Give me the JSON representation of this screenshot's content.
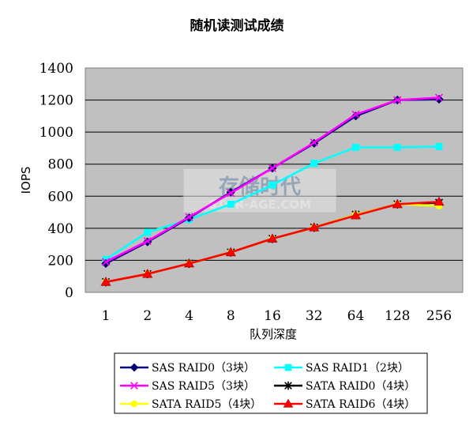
{
  "chart_data": {
    "type": "line",
    "title": "随机读测试成绩",
    "xlabel": "队列深度",
    "ylabel": "IOPS",
    "categories": [
      "1",
      "2",
      "4",
      "8",
      "16",
      "32",
      "64",
      "128",
      "256"
    ],
    "ylim": [
      0,
      1400
    ],
    "yticks": [
      "0",
      "200",
      "400",
      "600",
      "800",
      "1000",
      "1200",
      "1400"
    ],
    "grid": true,
    "legend": "bottom",
    "series": [
      {
        "name": "SAS RAID0（3块）",
        "color": "#000080",
        "marker": "diamond",
        "values": [
          180,
          315,
          465,
          625,
          775,
          930,
          1100,
          1200,
          1205
        ]
      },
      {
        "name": "SAS RAID1（2块）",
        "color": "#00FFFF",
        "marker": "square",
        "values": [
          205,
          375,
          455,
          550,
          670,
          805,
          905,
          905,
          910
        ]
      },
      {
        "name": "SAS RAID5（3块）",
        "color": "#FF00FF",
        "marker": "x",
        "values": [
          190,
          320,
          470,
          620,
          775,
          935,
          1110,
          1200,
          1215
        ]
      },
      {
        "name": "SATA RAID0（4块）",
        "color": "#000000",
        "marker": "star",
        "values": [
          65,
          115,
          180,
          250,
          335,
          405,
          485,
          550,
          560
        ]
      },
      {
        "name": "SATA RAID5（4块）",
        "color": "#FFFF00",
        "marker": "circle",
        "values": [
          65,
          115,
          180,
          250,
          335,
          405,
          485,
          550,
          540
        ]
      },
      {
        "name": "SATA RAID6（4块）",
        "color": "#FF0000",
        "marker": "triangle",
        "values": [
          65,
          115,
          180,
          250,
          335,
          405,
          480,
          550,
          565
        ]
      }
    ]
  },
  "watermark": {
    "main": "存储时代",
    "sub": "STOR-AGE.COM"
  },
  "colors": {
    "plot_background": "#C0C0C0",
    "grid": "#000000"
  }
}
